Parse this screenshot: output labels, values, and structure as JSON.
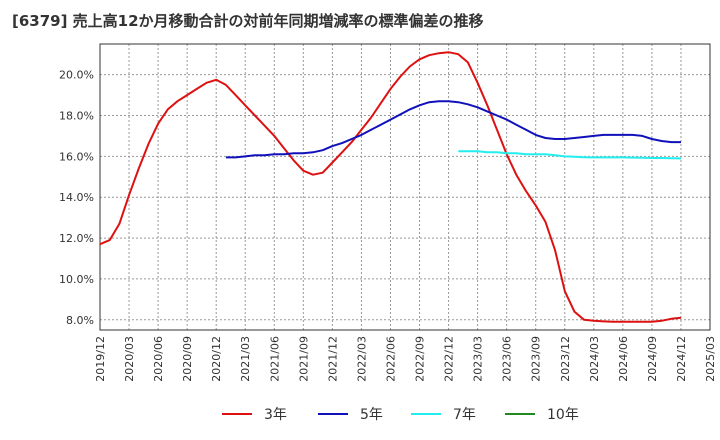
{
  "chart_data": {
    "type": "line",
    "title": "[6379]  売上高12か月移動合計の対前年同期増減率の標準偏差の推移",
    "xlabel": "",
    "ylabel": "",
    "x_ticks": [
      "2019/12",
      "2020/03",
      "2020/06",
      "2020/09",
      "2020/12",
      "2021/03",
      "2021/06",
      "2021/09",
      "2021/12",
      "2022/03",
      "2022/06",
      "2022/09",
      "2022/12",
      "2023/03",
      "2023/06",
      "2023/09",
      "2023/12",
      "2024/03",
      "2024/06",
      "2024/09",
      "2024/12",
      "2025/03"
    ],
    "y_ticks": [
      "8.0%",
      "10.0%",
      "12.0%",
      "14.0%",
      "16.0%",
      "18.0%",
      "20.0%"
    ],
    "ylim": [
      7.5,
      21.5
    ],
    "grid": true,
    "legend_position": "bottom",
    "series": [
      {
        "name": "3年",
        "color": "#dd1111",
        "points": [
          [
            "2019/12",
            11.7
          ],
          [
            "2020/01",
            11.9
          ],
          [
            "2020/02",
            12.7
          ],
          [
            "2020/03",
            14.1
          ],
          [
            "2020/04",
            15.4
          ],
          [
            "2020/05",
            16.6
          ],
          [
            "2020/06",
            17.6
          ],
          [
            "2020/07",
            18.3
          ],
          [
            "2020/08",
            18.7
          ],
          [
            "2020/09",
            19.0
          ],
          [
            "2020/10",
            19.3
          ],
          [
            "2020/11",
            19.6
          ],
          [
            "2020/12",
            19.75
          ],
          [
            "2021/01",
            19.5
          ],
          [
            "2021/02",
            19.0
          ],
          [
            "2021/03",
            18.5
          ],
          [
            "2021/04",
            18.0
          ],
          [
            "2021/05",
            17.5
          ],
          [
            "2021/06",
            17.0
          ],
          [
            "2021/07",
            16.4
          ],
          [
            "2021/08",
            15.8
          ],
          [
            "2021/09",
            15.3
          ],
          [
            "2021/10",
            15.1
          ],
          [
            "2021/11",
            15.2
          ],
          [
            "2021/12",
            15.7
          ],
          [
            "2022/01",
            16.2
          ],
          [
            "2022/02",
            16.7
          ],
          [
            "2022/03",
            17.3
          ],
          [
            "2022/04",
            17.9
          ],
          [
            "2022/05",
            18.6
          ],
          [
            "2022/06",
            19.3
          ],
          [
            "2022/07",
            19.9
          ],
          [
            "2022/08",
            20.4
          ],
          [
            "2022/09",
            20.75
          ],
          [
            "2022/10",
            20.95
          ],
          [
            "2022/11",
            21.05
          ],
          [
            "2022/12",
            21.1
          ],
          [
            "2023/01",
            21.0
          ],
          [
            "2023/02",
            20.6
          ],
          [
            "2023/03",
            19.6
          ],
          [
            "2023/04",
            18.5
          ],
          [
            "2023/05",
            17.3
          ],
          [
            "2023/06",
            16.1
          ],
          [
            "2023/07",
            15.1
          ],
          [
            "2023/08",
            14.3
          ],
          [
            "2023/09",
            13.6
          ],
          [
            "2023/10",
            12.8
          ],
          [
            "2023/11",
            11.4
          ],
          [
            "2023/12",
            9.4
          ],
          [
            "2024/01",
            8.4
          ],
          [
            "2024/02",
            8.0
          ],
          [
            "2024/03",
            7.95
          ],
          [
            "2024/04",
            7.92
          ],
          [
            "2024/05",
            7.9
          ],
          [
            "2024/06",
            7.9
          ],
          [
            "2024/07",
            7.9
          ],
          [
            "2024/08",
            7.9
          ],
          [
            "2024/09",
            7.9
          ],
          [
            "2024/10",
            7.95
          ],
          [
            "2024/11",
            8.05
          ],
          [
            "2024/12",
            8.1
          ]
        ]
      },
      {
        "name": "5年",
        "color": "#1111bb",
        "points": [
          [
            "2021/01",
            15.95
          ],
          [
            "2021/02",
            15.95
          ],
          [
            "2021/03",
            16.0
          ],
          [
            "2021/04",
            16.05
          ],
          [
            "2021/05",
            16.05
          ],
          [
            "2021/06",
            16.1
          ],
          [
            "2021/07",
            16.1
          ],
          [
            "2021/08",
            16.15
          ],
          [
            "2021/09",
            16.15
          ],
          [
            "2021/10",
            16.2
          ],
          [
            "2021/11",
            16.3
          ],
          [
            "2021/12",
            16.5
          ],
          [
            "2022/01",
            16.65
          ],
          [
            "2022/02",
            16.85
          ],
          [
            "2022/03",
            17.05
          ],
          [
            "2022/04",
            17.3
          ],
          [
            "2022/05",
            17.55
          ],
          [
            "2022/06",
            17.8
          ],
          [
            "2022/07",
            18.05
          ],
          [
            "2022/08",
            18.3
          ],
          [
            "2022/09",
            18.5
          ],
          [
            "2022/10",
            18.65
          ],
          [
            "2022/11",
            18.7
          ],
          [
            "2022/12",
            18.7
          ],
          [
            "2023/01",
            18.65
          ],
          [
            "2023/02",
            18.55
          ],
          [
            "2023/03",
            18.4
          ],
          [
            "2023/04",
            18.2
          ],
          [
            "2023/05",
            18.0
          ],
          [
            "2023/06",
            17.8
          ],
          [
            "2023/07",
            17.55
          ],
          [
            "2023/08",
            17.3
          ],
          [
            "2023/09",
            17.05
          ],
          [
            "2023/10",
            16.9
          ],
          [
            "2023/11",
            16.85
          ],
          [
            "2023/12",
            16.85
          ],
          [
            "2024/01",
            16.9
          ],
          [
            "2024/02",
            16.95
          ],
          [
            "2024/03",
            17.0
          ],
          [
            "2024/04",
            17.05
          ],
          [
            "2024/05",
            17.05
          ],
          [
            "2024/06",
            17.05
          ],
          [
            "2024/07",
            17.05
          ],
          [
            "2024/08",
            17.0
          ],
          [
            "2024/09",
            16.85
          ],
          [
            "2024/10",
            16.75
          ],
          [
            "2024/11",
            16.7
          ],
          [
            "2024/12",
            16.7
          ]
        ]
      },
      {
        "name": "7年",
        "color": "#22eeee",
        "points": [
          [
            "2023/01",
            16.25
          ],
          [
            "2023/02",
            16.25
          ],
          [
            "2023/03",
            16.25
          ],
          [
            "2023/04",
            16.2
          ],
          [
            "2023/05",
            16.2
          ],
          [
            "2023/06",
            16.15
          ],
          [
            "2023/07",
            16.15
          ],
          [
            "2023/08",
            16.1
          ],
          [
            "2023/09",
            16.1
          ],
          [
            "2023/10",
            16.1
          ],
          [
            "2023/11",
            16.05
          ],
          [
            "2023/12",
            16.0
          ],
          [
            "2024/01",
            15.98
          ],
          [
            "2024/02",
            15.96
          ],
          [
            "2024/03",
            15.95
          ],
          [
            "2024/04",
            15.95
          ],
          [
            "2024/05",
            15.95
          ],
          [
            "2024/06",
            15.95
          ],
          [
            "2024/07",
            15.94
          ],
          [
            "2024/08",
            15.93
          ],
          [
            "2024/09",
            15.92
          ],
          [
            "2024/10",
            15.92
          ],
          [
            "2024/11",
            15.91
          ],
          [
            "2024/12",
            15.9
          ]
        ]
      },
      {
        "name": "10年",
        "color": "#228822",
        "points": []
      }
    ]
  }
}
